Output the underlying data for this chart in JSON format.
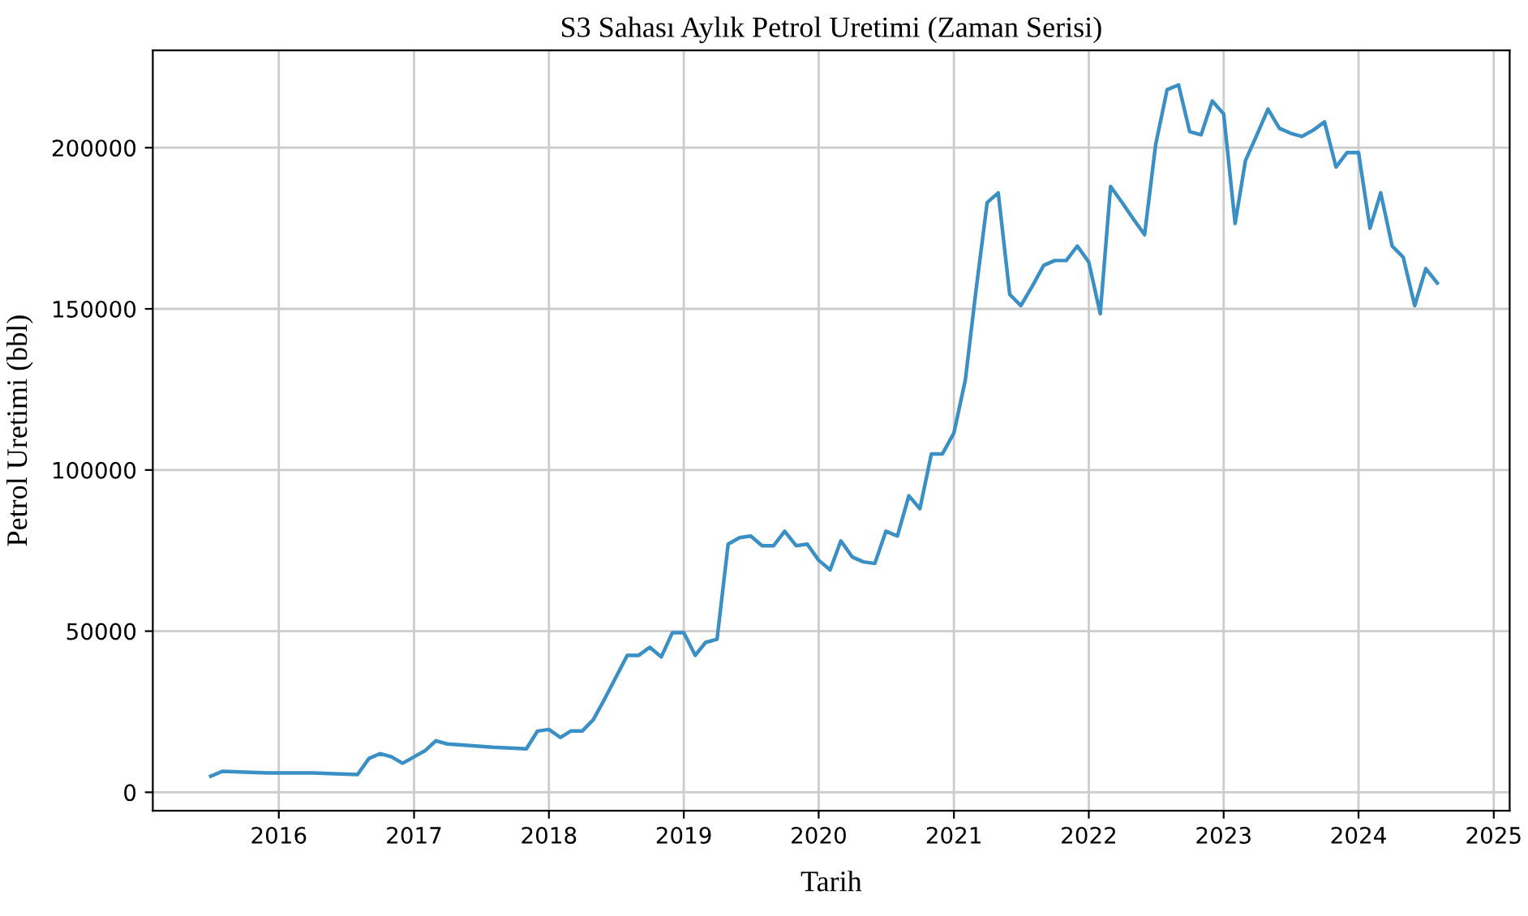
{
  "chart_data": {
    "type": "line",
    "title": "S3 Sahası Aylık Petrol Uretimi (Zaman Serisi)",
    "xlabel": "Tarih",
    "ylabel": "Petrol Uretimi (bbl)",
    "x": [
      "2015-07",
      "2015-08",
      "2015-12",
      "2016-04",
      "2016-08",
      "2016-09",
      "2016-10",
      "2016-11",
      "2016-12",
      "2017-01",
      "2017-02",
      "2017-03",
      "2017-04",
      "2017-06",
      "2017-08",
      "2017-11",
      "2017-12",
      "2018-01",
      "2018-02",
      "2018-03",
      "2018-04",
      "2018-05",
      "2018-06",
      "2018-08",
      "2018-09",
      "2018-10",
      "2018-11",
      "2018-12",
      "2019-01",
      "2019-02",
      "2019-03",
      "2019-04",
      "2019-05",
      "2019-06",
      "2019-07",
      "2019-08",
      "2019-09",
      "2019-10",
      "2019-11",
      "2019-12",
      "2020-01",
      "2020-02",
      "2020-03",
      "2020-04",
      "2020-05",
      "2020-06",
      "2020-07",
      "2020-08",
      "2020-09",
      "2020-10",
      "2020-11",
      "2020-12",
      "2021-01",
      "2021-02",
      "2021-03",
      "2021-04",
      "2021-05",
      "2021-06",
      "2021-07",
      "2021-08",
      "2021-09",
      "2021-10",
      "2021-11",
      "2021-12",
      "2022-01",
      "2022-02",
      "2022-03",
      "2022-04",
      "2022-05",
      "2022-06",
      "2022-07",
      "2022-08",
      "2022-09",
      "2022-10",
      "2022-11",
      "2022-12",
      "2023-01",
      "2023-02",
      "2023-03",
      "2023-04",
      "2023-05",
      "2023-06",
      "2023-07",
      "2023-08",
      "2023-09",
      "2023-10",
      "2023-11",
      "2023-12",
      "2024-01",
      "2024-02",
      "2024-03",
      "2024-04",
      "2024-05",
      "2024-06",
      "2024-07",
      "2024-08"
    ],
    "series": [
      {
        "color": "#3a8fc5",
        "values": [
          5000,
          6500,
          6000,
          6000,
          5500,
          10500,
          12000,
          11000,
          9000,
          11000,
          13000,
          16000,
          15000,
          14500,
          14000,
          13500,
          19000,
          19500,
          17000,
          19000,
          19000,
          22500,
          29000,
          42500,
          42500,
          45000,
          42000,
          49500,
          49500,
          42500,
          46500,
          47500,
          77000,
          79000,
          79500,
          76500,
          76500,
          81000,
          76500,
          77000,
          72000,
          69000,
          78000,
          73000,
          71500,
          71000,
          81000,
          79500,
          92000,
          88000,
          105000,
          105000,
          111500,
          128000,
          155000,
          183000,
          186000,
          154500,
          151000,
          157000,
          163500,
          165000,
          165000,
          169500,
          164500,
          148500,
          188000,
          183000,
          178000,
          173000,
          201000,
          218000,
          219500,
          205000,
          204000,
          214500,
          210500,
          176500,
          196000,
          204000,
          212000,
          206000,
          204500,
          203500,
          205500,
          208000,
          194000,
          198500,
          198500,
          175000,
          186000,
          169500,
          166000,
          151000,
          162500,
          158000
        ]
      }
    ],
    "xlim": [
      "2015-01-25",
      "2025-02-13"
    ],
    "xticks": [
      "2016",
      "2017",
      "2018",
      "2019",
      "2020",
      "2021",
      "2022",
      "2023",
      "2024",
      "2025"
    ],
    "ylim": [
      -5700,
      230200
    ],
    "yticks": [
      0,
      50000,
      100000,
      150000,
      200000
    ],
    "grid": true,
    "marker": "none",
    "line_style": "solid"
  }
}
